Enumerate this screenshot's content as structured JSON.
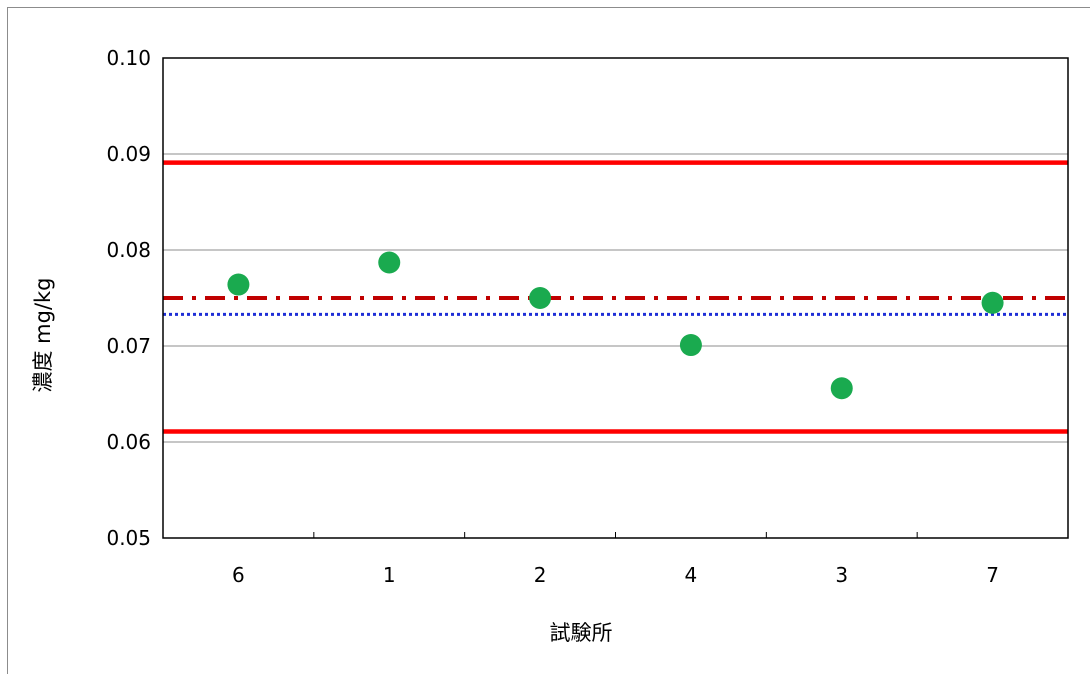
{
  "chart_data": {
    "type": "scatter",
    "title": "",
    "xlabel": "試験所",
    "ylabel": "濃度 mg/kg",
    "categories": [
      "6",
      "1",
      "2",
      "4",
      "3",
      "7"
    ],
    "series": [
      {
        "values": [
          0.0764,
          0.0787,
          0.075,
          0.0701,
          0.0656,
          0.0745
        ],
        "color": "#1aaa4f",
        "marker": "circle"
      }
    ],
    "reference_lines": [
      {
        "value": 0.0891,
        "style": "solid",
        "color": "#ff0000"
      },
      {
        "value": 0.0611,
        "style": "solid",
        "color": "#ff0000"
      },
      {
        "value": 0.075,
        "style": "dash-dot",
        "color": "#c00000"
      },
      {
        "value": 0.0733,
        "style": "dotted",
        "color": "#1f2fd6"
      }
    ],
    "ylim": [
      0.05,
      0.1
    ],
    "yticks": [
      "0.05",
      "0.06",
      "0.07",
      "0.08",
      "0.09",
      "0.10"
    ],
    "grid": true,
    "legend": "none"
  }
}
